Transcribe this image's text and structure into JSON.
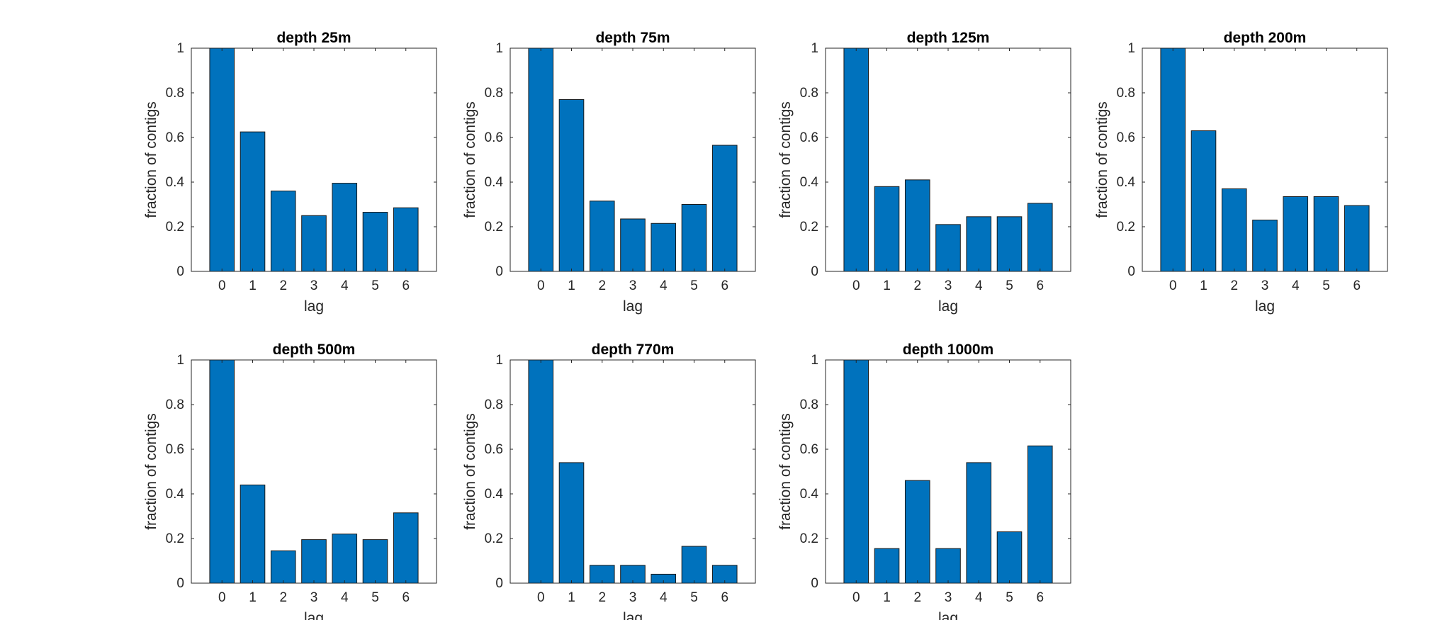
{
  "colors": {
    "bar": "#0072BD",
    "axis": "#262626"
  },
  "chart_data": [
    {
      "type": "bar",
      "title": "depth 25m",
      "xlabel": "lag",
      "ylabel": "fraction of contigs",
      "categories": [
        "0",
        "1",
        "2",
        "3",
        "4",
        "5",
        "6"
      ],
      "values": [
        1.0,
        0.625,
        0.36,
        0.25,
        0.395,
        0.265,
        0.285
      ],
      "ylim": [
        0,
        1
      ],
      "yticks": [
        "0",
        "0.2",
        "0.4",
        "0.6",
        "0.8",
        "1"
      ],
      "grid": false,
      "legend": false
    },
    {
      "type": "bar",
      "title": "depth 75m",
      "xlabel": "lag",
      "ylabel": "fraction of contigs",
      "categories": [
        "0",
        "1",
        "2",
        "3",
        "4",
        "5",
        "6"
      ],
      "values": [
        1.0,
        0.77,
        0.315,
        0.235,
        0.215,
        0.3,
        0.565
      ],
      "ylim": [
        0,
        1
      ],
      "yticks": [
        "0",
        "0.2",
        "0.4",
        "0.6",
        "0.8",
        "1"
      ],
      "grid": false,
      "legend": false
    },
    {
      "type": "bar",
      "title": "depth 125m",
      "xlabel": "lag",
      "ylabel": "fraction of contigs",
      "categories": [
        "0",
        "1",
        "2",
        "3",
        "4",
        "5",
        "6"
      ],
      "values": [
        1.0,
        0.38,
        0.41,
        0.21,
        0.245,
        0.245,
        0.305
      ],
      "ylim": [
        0,
        1
      ],
      "yticks": [
        "0",
        "0.2",
        "0.4",
        "0.6",
        "0.8",
        "1"
      ],
      "grid": false,
      "legend": false
    },
    {
      "type": "bar",
      "title": "depth 200m",
      "xlabel": "lag",
      "ylabel": "fraction of contigs",
      "categories": [
        "0",
        "1",
        "2",
        "3",
        "4",
        "5",
        "6"
      ],
      "values": [
        1.0,
        0.63,
        0.37,
        0.23,
        0.335,
        0.335,
        0.295
      ],
      "ylim": [
        0,
        1
      ],
      "yticks": [
        "0",
        "0.2",
        "0.4",
        "0.6",
        "0.8",
        "1"
      ],
      "grid": false,
      "legend": false
    },
    {
      "type": "bar",
      "title": "depth 500m",
      "xlabel": "lag",
      "ylabel": "fraction of contigs",
      "categories": [
        "0",
        "1",
        "2",
        "3",
        "4",
        "5",
        "6"
      ],
      "values": [
        1.0,
        0.44,
        0.145,
        0.195,
        0.22,
        0.195,
        0.315
      ],
      "ylim": [
        0,
        1
      ],
      "yticks": [
        "0",
        "0.2",
        "0.4",
        "0.6",
        "0.8",
        "1"
      ],
      "grid": false,
      "legend": false
    },
    {
      "type": "bar",
      "title": "depth 770m",
      "xlabel": "lag",
      "ylabel": "fraction of contigs",
      "categories": [
        "0",
        "1",
        "2",
        "3",
        "4",
        "5",
        "6"
      ],
      "values": [
        1.0,
        0.54,
        0.08,
        0.08,
        0.04,
        0.165,
        0.08
      ],
      "ylim": [
        0,
        1
      ],
      "yticks": [
        "0",
        "0.2",
        "0.4",
        "0.6",
        "0.8",
        "1"
      ],
      "grid": false,
      "legend": false
    },
    {
      "type": "bar",
      "title": "depth 1000m",
      "xlabel": "lag",
      "ylabel": "fraction of contigs",
      "categories": [
        "0",
        "1",
        "2",
        "3",
        "4",
        "5",
        "6"
      ],
      "values": [
        1.0,
        0.155,
        0.46,
        0.155,
        0.54,
        0.23,
        0.615
      ],
      "ylim": [
        0,
        1
      ],
      "yticks": [
        "0",
        "0.2",
        "0.4",
        "0.6",
        "0.8",
        "1"
      ],
      "grid": false,
      "legend": false
    }
  ]
}
